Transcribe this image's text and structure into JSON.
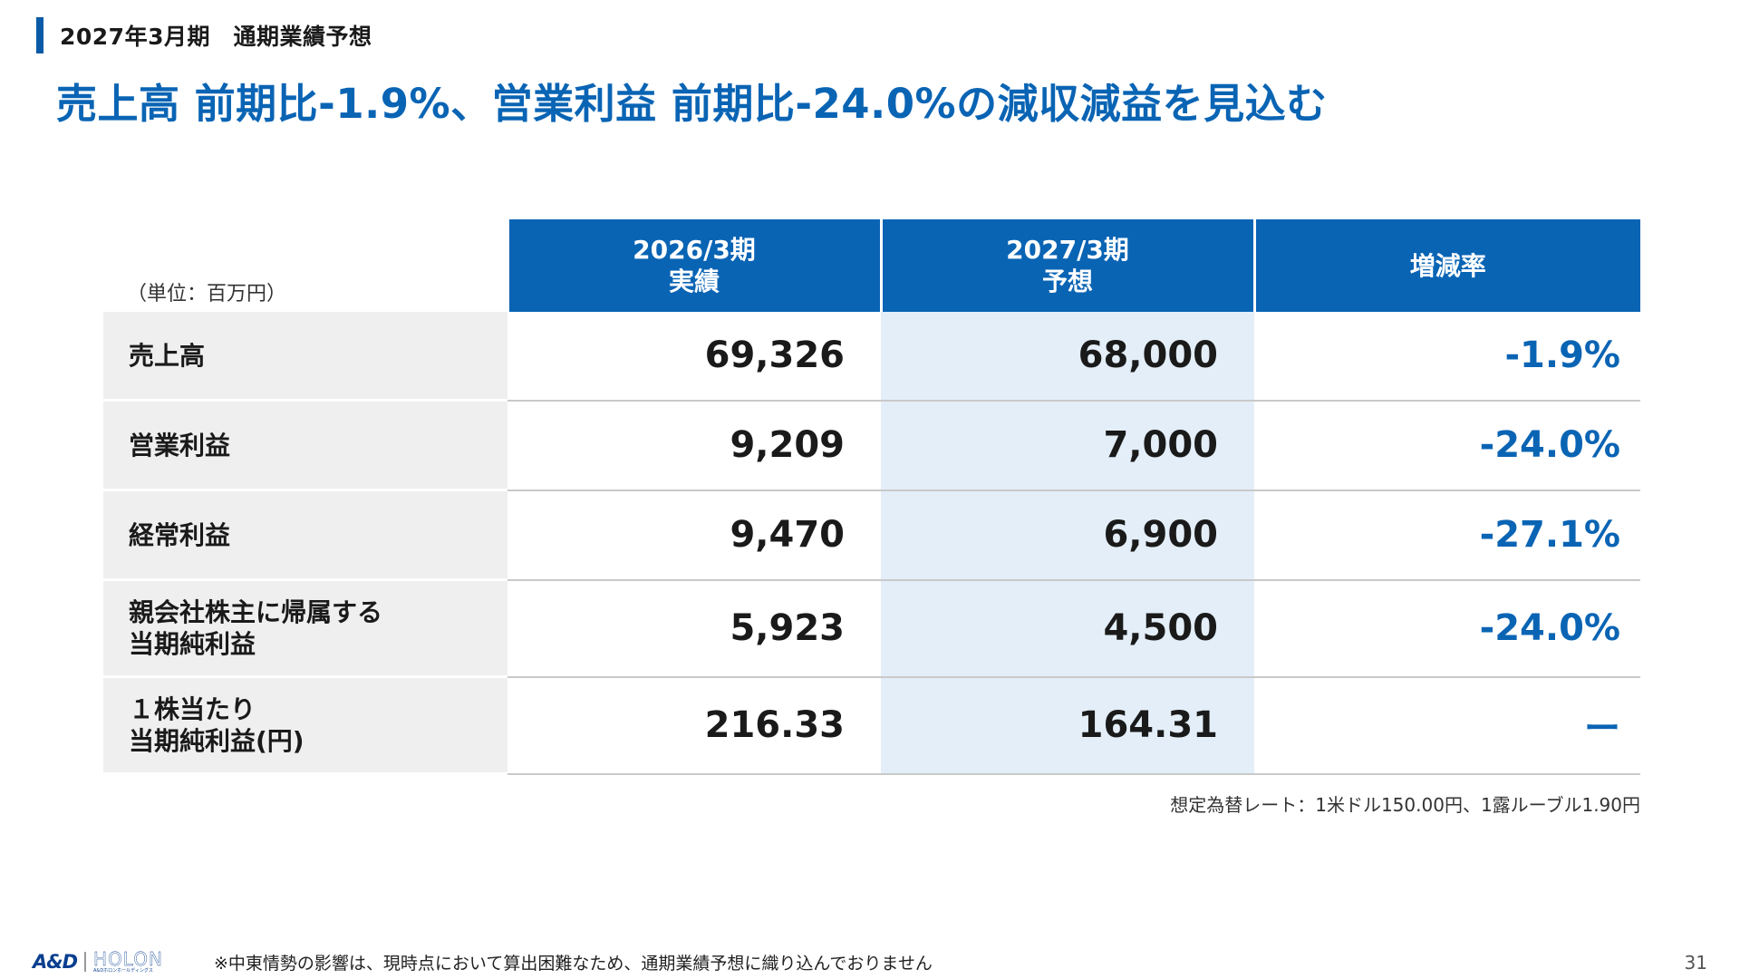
{
  "header": {
    "label": "2027年3月期　通期業績予想"
  },
  "headline": "売上高 前期比-1.9%、営業利益 前期比-24.0%の減収減益を見込む",
  "table": {
    "unit": "（単位：百万円）",
    "columns": [
      {
        "line1": "2026/3期",
        "line2": "実績"
      },
      {
        "line1": "2027/3期",
        "line2": "予想"
      },
      {
        "line1": "増減率",
        "line2": ""
      }
    ],
    "rows": [
      {
        "label_l1": "売上高",
        "label_l2": "",
        "actual": "69,326",
        "forecast": "68,000",
        "rate": "-1.9%"
      },
      {
        "label_l1": "営業利益",
        "label_l2": "",
        "actual": "9,209",
        "forecast": "7,000",
        "rate": "-24.0%"
      },
      {
        "label_l1": "経常利益",
        "label_l2": "",
        "actual": "9,470",
        "forecast": "6,900",
        "rate": "-27.1%"
      },
      {
        "label_l1": "親会社株主に帰属する",
        "label_l2": "当期純利益",
        "actual": "5,923",
        "forecast": "4,500",
        "rate": "-24.0%"
      },
      {
        "label_l1": "１株当たり",
        "label_l2": "当期純利益(円)",
        "actual": "216.33",
        "forecast": "164.31",
        "rate": "ー"
      }
    ]
  },
  "exchange_note": "想定為替レート：1米ドル150.00円、1露ルーブル1.90円",
  "footer": {
    "logo_and": "A&D",
    "logo_holon": "HOLON",
    "logo_sub": "A&Dホロンホールディングス",
    "note": "※中東情勢の影響は、現時点において算出困難なため、通期業績予想に織り込んでおりません",
    "page": "31"
  },
  "colors": {
    "accent": "#0a64b4",
    "forecast_bg": "#e3eef8",
    "label_bg": "#efefef"
  }
}
